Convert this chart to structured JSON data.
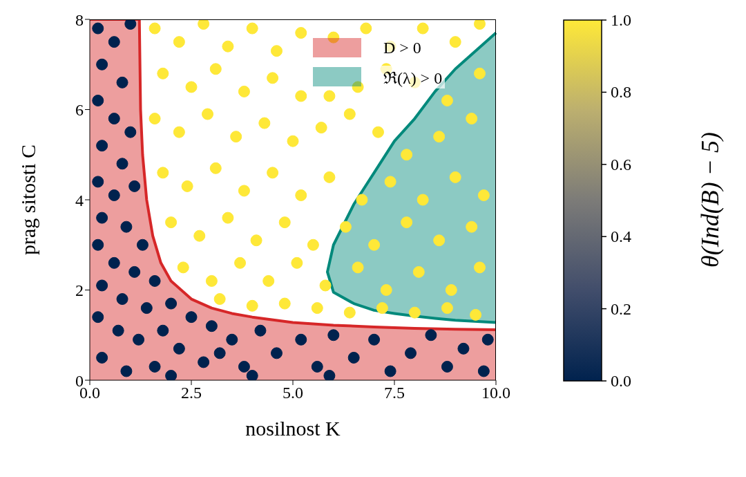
{
  "chart_data": {
    "type": "scatter",
    "xlabel": "nosilnost K",
    "ylabel": "prag sitosti C",
    "clabel": "θ(Ind(B) − 5)",
    "xlim": [
      0,
      10
    ],
    "ylim": [
      0,
      8
    ],
    "xticks": [
      {
        "value": 0,
        "label": "0.0"
      },
      {
        "value": 2.5,
        "label": "2.5"
      },
      {
        "value": 5,
        "label": "5.0"
      },
      {
        "value": 7.5,
        "label": "7.5"
      },
      {
        "value": 10,
        "label": "10.0"
      }
    ],
    "yticks": [
      0,
      2,
      4,
      6,
      8
    ],
    "clim": [
      0,
      1
    ],
    "cticks": [
      {
        "value": 0,
        "label": "0.0"
      },
      {
        "value": 0.2,
        "label": "0.2"
      },
      {
        "value": 0.4,
        "label": "0.4"
      },
      {
        "value": 0.6,
        "label": "0.6"
      },
      {
        "value": 0.8,
        "label": "0.8"
      },
      {
        "value": 1,
        "label": "1.0"
      }
    ],
    "legend": "top right",
    "series": [
      {
        "type": "area",
        "name": "D > 0",
        "color": "#d62728",
        "x": [
          0,
          1.22,
          1.25,
          1.3,
          1.4,
          1.55,
          1.75,
          2,
          2.5,
          3,
          3.5,
          4,
          5,
          6,
          7,
          8,
          9,
          10
        ],
        "values": [
          8,
          8,
          6,
          5,
          4,
          3.2,
          2.6,
          2.2,
          1.8,
          1.6,
          1.48,
          1.4,
          1.28,
          1.22,
          1.18,
          1.15,
          1.13,
          1.12
        ]
      },
      {
        "type": "area",
        "name": "ℜ(λ) > 0",
        "color": "#00897b",
        "x": [
          10,
          9,
          8.5,
          8,
          7.5,
          7,
          6.5,
          6,
          5.85,
          6,
          6.5,
          7,
          7.5,
          8,
          8.5,
          9,
          10
        ],
        "values": [
          7.7,
          6.9,
          6.4,
          5.8,
          5.3,
          4.6,
          3.9,
          3,
          2.4,
          1.95,
          1.7,
          1.55,
          1.48,
          1.42,
          1.37,
          1.33,
          1.28
        ]
      },
      {
        "marker": "circle",
        "color": "#00224e",
        "x": [
          0.2,
          0.6,
          1.0,
          0.3,
          0.8,
          0.2,
          0.6,
          1.0,
          0.3,
          0.8,
          0.2,
          0.6,
          1.1,
          0.3,
          0.9,
          1.3,
          0.2,
          0.6,
          1.1,
          1.6,
          0.3,
          0.8,
          1.4,
          2.0,
          2.5,
          0.2,
          0.7,
          1.2,
          1.8,
          2.2,
          3.0,
          3.5,
          2.8,
          0.3,
          0.9,
          1.6,
          3.8,
          4.2,
          4.6,
          5.2,
          5.6,
          6.0,
          6.5,
          7.0,
          7.4,
          7.9,
          8.4,
          8.8,
          9.2,
          9.7,
          9.8,
          4.0,
          5.9,
          3.2,
          2.0
        ],
        "values": [
          7.8,
          7.5,
          7.9,
          7.0,
          6.6,
          6.2,
          5.8,
          5.5,
          5.2,
          4.8,
          4.4,
          4.1,
          4.3,
          3.6,
          3.4,
          3.0,
          3.0,
          2.6,
          2.4,
          2.2,
          2.1,
          1.8,
          1.6,
          1.7,
          1.4,
          1.4,
          1.1,
          0.9,
          1.1,
          0.7,
          1.2,
          0.9,
          0.4,
          0.5,
          0.2,
          0.3,
          0.3,
          1.1,
          0.6,
          0.9,
          0.3,
          1.0,
          0.5,
          0.9,
          0.2,
          0.6,
          1.0,
          0.3,
          0.7,
          0.2,
          0.9,
          0.1,
          0.1,
          0.6,
          0.1
        ],
        "cvalues": [
          0,
          0,
          0,
          0,
          0,
          0,
          0,
          0,
          0,
          0,
          0,
          0,
          0,
          0,
          0,
          0,
          0,
          0,
          0,
          0,
          0,
          0,
          0,
          0,
          0,
          0,
          0,
          0,
          0,
          0,
          0,
          0,
          0,
          0,
          0,
          0,
          0,
          0,
          0,
          0,
          0,
          0,
          0,
          0,
          0,
          0,
          0,
          0,
          0,
          0,
          0,
          0,
          0,
          0,
          0
        ]
      },
      {
        "marker": "circle",
        "color": "#fee838",
        "x": [
          1.6,
          2.2,
          2.8,
          3.4,
          4.0,
          4.6,
          5.2,
          6.0,
          6.8,
          7.4,
          8.2,
          9.0,
          9.6,
          1.8,
          2.5,
          3.1,
          3.8,
          4.5,
          5.2,
          5.9,
          6.6,
          7.3,
          8.0,
          8.8,
          9.6,
          1.6,
          2.2,
          2.9,
          3.6,
          4.3,
          5.0,
          5.7,
          6.4,
          7.1,
          7.8,
          8.6,
          9.4,
          1.8,
          2.4,
          3.1,
          3.8,
          4.5,
          5.2,
          5.9,
          6.7,
          7.4,
          8.2,
          9.0,
          9.7,
          2.0,
          2.7,
          3.4,
          4.1,
          4.8,
          5.5,
          6.3,
          7.0,
          7.8,
          8.6,
          9.4,
          2.3,
          3.0,
          3.7,
          4.4,
          5.1,
          5.8,
          6.6,
          7.3,
          8.1,
          8.9,
          9.6,
          3.2,
          4.0,
          4.8,
          5.6,
          6.4,
          7.2,
          8.0,
          8.8,
          9.5
        ],
        "values": [
          7.8,
          7.5,
          7.9,
          7.4,
          7.8,
          7.3,
          7.7,
          7.6,
          7.8,
          7.4,
          7.8,
          7.5,
          7.9,
          6.8,
          6.5,
          6.9,
          6.4,
          6.7,
          6.3,
          6.3,
          6.5,
          6.9,
          6.6,
          6.2,
          6.8,
          5.8,
          5.5,
          5.9,
          5.4,
          5.7,
          5.3,
          5.6,
          5.9,
          5.5,
          5.0,
          5.4,
          5.8,
          4.6,
          4.3,
          4.7,
          4.2,
          4.6,
          4.1,
          4.5,
          4.0,
          4.4,
          4.0,
          4.5,
          4.1,
          3.5,
          3.2,
          3.6,
          3.1,
          3.5,
          3.0,
          3.4,
          3.0,
          3.5,
          3.1,
          3.4,
          2.5,
          2.2,
          2.6,
          2.2,
          2.6,
          2.1,
          2.5,
          2.0,
          2.4,
          2.0,
          2.5,
          1.8,
          1.65,
          1.7,
          1.6,
          1.5,
          1.6,
          1.5,
          1.6,
          1.45
        ],
        "cvalues": [
          1,
          1,
          1,
          1,
          1,
          1,
          1,
          1,
          1,
          1,
          1,
          1,
          1,
          1,
          1,
          1,
          1,
          1,
          1,
          1,
          1,
          1,
          1,
          1,
          1,
          1,
          1,
          1,
          1,
          1,
          1,
          1,
          1,
          1,
          1,
          1,
          1,
          1,
          1,
          1,
          1,
          1,
          1,
          1,
          1,
          1,
          1,
          1,
          1,
          1,
          1,
          1,
          1,
          1,
          1,
          1,
          1,
          1,
          1,
          1,
          1,
          1,
          1,
          1,
          1,
          1,
          1,
          1,
          1,
          1,
          1,
          1,
          1,
          1,
          1,
          1,
          1,
          1,
          1,
          1
        ]
      }
    ]
  }
}
